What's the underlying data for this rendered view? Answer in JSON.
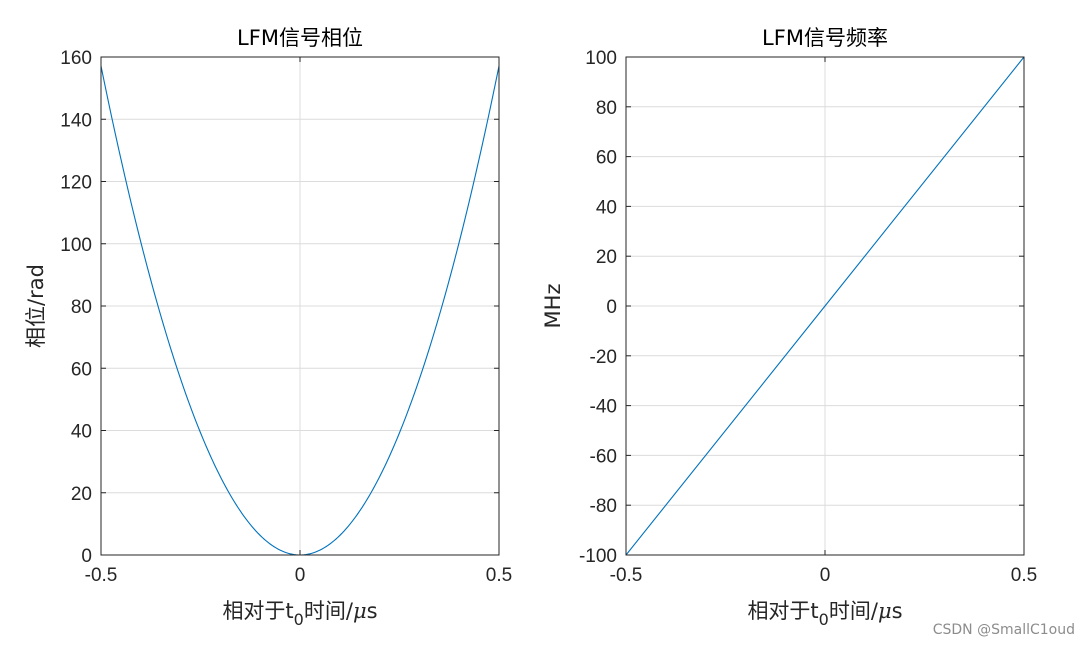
{
  "chart_data": [
    {
      "type": "line",
      "title": "LFM信号相位",
      "xlabel_main": "相对于t",
      "xlabel_sub": "0",
      "xlabel_tail": "时间/",
      "xlabel_mu": "μ",
      "xlabel_unit": "s",
      "ylabel": "相位/rad",
      "xlim": [
        -0.5,
        0.5
      ],
      "ylim": [
        0,
        160
      ],
      "xticks": [
        -0.5,
        0,
        0.5
      ],
      "xtick_labels": [
        "-0.5",
        "0",
        "0.5"
      ],
      "yticks": [
        0,
        20,
        40,
        60,
        80,
        100,
        120,
        140,
        160
      ],
      "ytick_labels": [
        "0",
        "20",
        "40",
        "60",
        "80",
        "100",
        "120",
        "140",
        "160"
      ],
      "grid": true,
      "line_color": "#0072BD",
      "series": [
        {
          "function": "quadratic",
          "x": [
            -0.5,
            -0.4,
            -0.3,
            -0.2,
            -0.1,
            0,
            0.1,
            0.2,
            0.3,
            0.4,
            0.5
          ],
          "y": [
            157.1,
            100.5,
            56.5,
            25.1,
            6.3,
            0,
            6.3,
            25.1,
            56.5,
            100.5,
            157.1
          ]
        }
      ]
    },
    {
      "type": "line",
      "title": "LFM信号频率",
      "xlabel_main": "相对于t",
      "xlabel_sub": "0",
      "xlabel_tail": "时间/",
      "xlabel_mu": "μ",
      "xlabel_unit": "s",
      "ylabel": "MHz",
      "xlim": [
        -0.5,
        0.5
      ],
      "ylim": [
        -100,
        100
      ],
      "xticks": [
        -0.5,
        0,
        0.5
      ],
      "xtick_labels": [
        "-0.5",
        "0",
        "0.5"
      ],
      "yticks": [
        -100,
        -80,
        -60,
        -40,
        -20,
        0,
        20,
        40,
        60,
        80,
        100
      ],
      "ytick_labels": [
        "-100",
        "-80",
        "-60",
        "-40",
        "-20",
        "0",
        "20",
        "40",
        "60",
        "80",
        "100"
      ],
      "grid": true,
      "line_color": "#0072BD",
      "series": [
        {
          "function": "linear",
          "x": [
            -0.5,
            0,
            0.5
          ],
          "y": [
            -100,
            0,
            100
          ]
        }
      ]
    }
  ],
  "watermark": "CSDN @SmallC1oud"
}
